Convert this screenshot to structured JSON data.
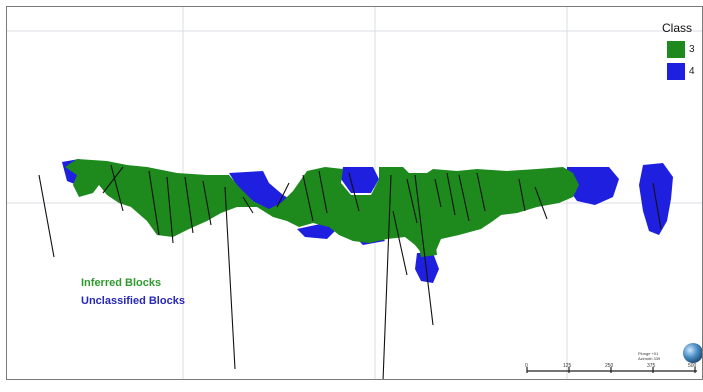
{
  "legend": {
    "title": "Class",
    "items": [
      {
        "label": "3",
        "color": "#1e8a1e"
      },
      {
        "label": "4",
        "color": "#1f1fe0"
      }
    ]
  },
  "captions": {
    "inferred": {
      "text": "Inferred Blocks",
      "color": "#2e9a2e"
    },
    "unclassified": {
      "text": "Unclassified Blocks",
      "color": "#2727b8"
    }
  },
  "orientation": {
    "plunge": "Plunge +01",
    "azimuth": "Azimuth 339"
  },
  "scale_bar": {
    "ticks": [
      "0",
      "125",
      "250",
      "375",
      "500"
    ]
  },
  "colors": {
    "class3": "#1e8a1e",
    "class4": "#1f1fe0",
    "grid": "#d8dde6",
    "drillhole": "#111111"
  }
}
